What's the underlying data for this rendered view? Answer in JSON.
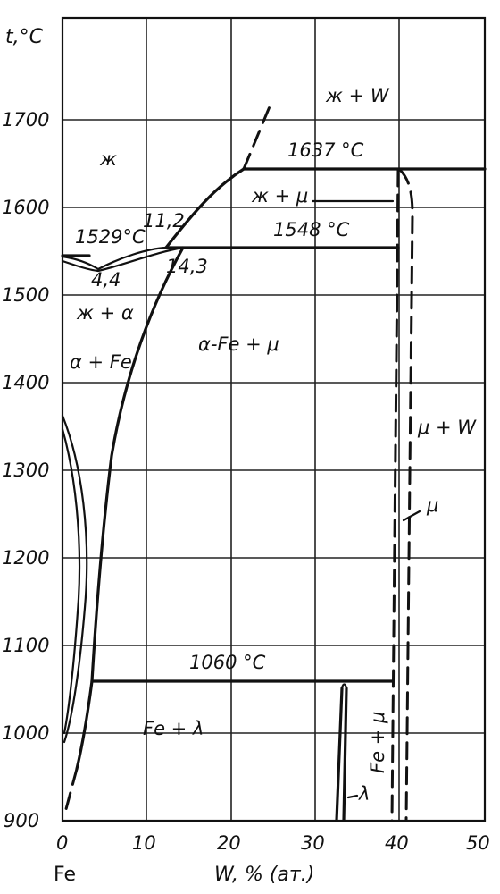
{
  "chart_data": {
    "type": "phase-diagram",
    "ylabel": "t,°C",
    "xlabel": "W, % (ат.)",
    "x_left_label": "Fe",
    "xlim": [
      0,
      50
    ],
    "ylim": [
      900,
      1800
    ],
    "xticks": [
      "0",
      "10",
      "20",
      "30",
      "40",
      "50"
    ],
    "yticks": [
      "900",
      "1000",
      "1100",
      "1200",
      "1300",
      "1400",
      "1500",
      "1600",
      "1700"
    ],
    "grid": true,
    "temperatures": {
      "peritectic_high": "1637 °C",
      "peritectic_mid": "1548 °C",
      "minimum": "1529°C",
      "eutectoid": "1060 °C"
    },
    "compositions": {
      "liquid_at_1548": "11,2",
      "alpha_at_1548": "14,3",
      "minimum_point": "4,4"
    },
    "phase_regions": {
      "liquid": "ж",
      "liquid_w": "ж + W",
      "liquid_mu": "ж + μ",
      "liquid_alpha": "ж + α",
      "alpha_fe": "α + Fe",
      "alpha_fe_mu": "α-Fe + μ",
      "mu_w": "μ + W",
      "mu": "μ",
      "fe_lambda": "Fe + λ",
      "fe_mu": "Fe + μ",
      "lambda": "λ"
    }
  }
}
